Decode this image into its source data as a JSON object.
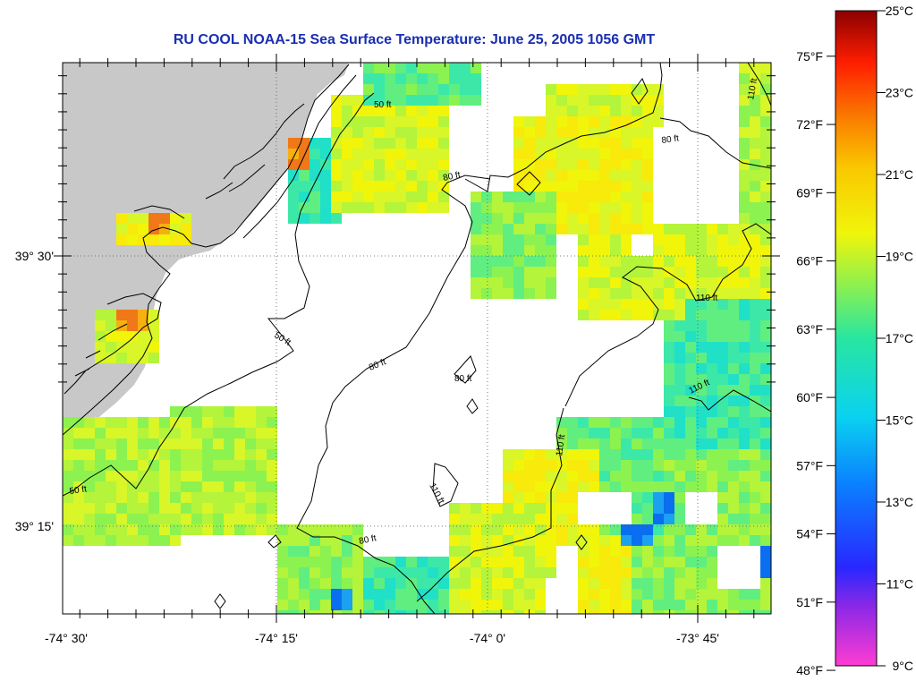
{
  "title": "RU COOL  NOAA-15  Sea Surface Temperature:  June 25, 2005 1056 GMT",
  "axes": {
    "x_ticks": [
      "-74° 30'",
      "-74° 15'",
      "-74° 0'",
      "-73° 45'"
    ],
    "y_ticks": [
      "39° 30'",
      "39° 15'"
    ]
  },
  "contours": [
    "50 ft",
    "50 ft",
    "50 ft",
    "80 ft",
    "80 ft",
    "80 ft",
    "80 ft",
    "80 ft",
    "110 ft",
    "110 ft",
    "110 ft",
    "110 ft",
    "110 ft"
  ],
  "colorbar": {
    "fahrenheit": [
      "75°F",
      "72°F",
      "69°F",
      "66°F",
      "63°F",
      "60°F",
      "57°F",
      "54°F",
      "51°F",
      "48°F"
    ],
    "celsius": [
      "25°C",
      "23°C",
      "21°C",
      "19°C",
      "17°C",
      "15°C",
      "13°C",
      "11°C",
      "9°C"
    ]
  },
  "colors": {
    "land": "#c8c8c8",
    "title": "#1a2fb0",
    "warm": "#f07818",
    "yellow": "#f5f50a",
    "cyan": "#12d8f0",
    "blue": "#0a6ef0"
  }
}
